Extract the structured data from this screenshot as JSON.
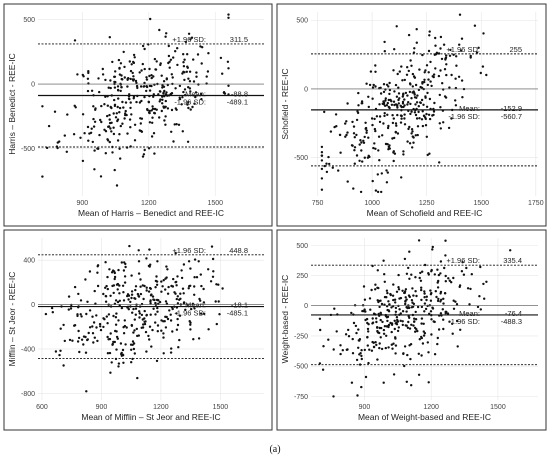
{
  "caption": "(a)",
  "chart_data": [
    {
      "type": "scatter",
      "xlabel": "Mean of Harris – Benedict and REE-IC",
      "ylabel": "Harris – Benedict - REE-IC",
      "xlim": [
        700,
        1720
      ],
      "ylim": [
        -870,
        560
      ],
      "xticks": [
        900,
        1200,
        1500
      ],
      "yticks": [
        -500,
        0,
        500
      ],
      "lines": [
        {
          "label": "+1.96 SD:",
          "value": 311.5
        },
        {
          "label": "Mean:",
          "value": -88.8
        },
        {
          "label": "-1.96 SD:",
          "value": -489.1
        }
      ],
      "ann_values": [
        "311.5",
        "-88.8",
        "-489.1"
      ],
      "x_center": 1170,
      "x_spread": 170,
      "x_min": 720,
      "x_max": 1560,
      "slope": 0.6,
      "resid_sd": 210,
      "seed": 11
    },
    {
      "type": "scatter",
      "xlabel": "Mean of Schofield and REE-IC",
      "ylabel": "Schofield - REE-IC",
      "xlim": [
        720,
        1760
      ],
      "ylim": [
        -780,
        560
      ],
      "xticks": [
        750,
        1000,
        1250,
        1500,
        1750
      ],
      "yticks": [
        -500,
        0,
        500
      ],
      "lines": [
        {
          "label": "+1.96 SD:",
          "value": 255
        },
        {
          "label": "Mean:",
          "value": -152.9
        },
        {
          "label": "-1.96 SD:",
          "value": -560.7
        }
      ],
      "ann_values": [
        "255",
        "-152.9",
        "-560.7"
      ],
      "x_center": 1120,
      "x_spread": 160,
      "x_min": 770,
      "x_max": 1560,
      "slope": 0.9,
      "resid_sd": 200,
      "seed": 23
    },
    {
      "type": "scatter",
      "xlabel": "Mean of Mifflin – St Jeor and REE-IC",
      "ylabel": "Mifflin – St Jeor - REE-IC",
      "xlim": [
        580,
        1720
      ],
      "ylim": [
        -860,
        600
      ],
      "xticks": [
        600,
        900,
        1200,
        1500
      ],
      "yticks": [
        -800,
        -400,
        0,
        400
      ],
      "lines": [
        {
          "label": "+1.96 SD:",
          "value": 448.8
        },
        {
          "label": "Mean:",
          "value": -18.1
        },
        {
          "label": "-1.96 SD:",
          "value": -485.1
        }
      ],
      "ann_values": [
        "448.8",
        "-18.1",
        "-485.1"
      ],
      "x_center": 1080,
      "x_spread": 180,
      "x_min": 620,
      "x_max": 1560,
      "slope": 0.35,
      "resid_sd": 230,
      "seed": 37
    },
    {
      "type": "scatter",
      "xlabel": "Mean of Weight-based and REE-IC",
      "ylabel": "Weight-based - REE-IC",
      "xlim": [
        660,
        1680
      ],
      "ylim": [
        -780,
        560
      ],
      "xticks": [
        900,
        1200,
        1500
      ],
      "yticks": [
        -750,
        -500,
        -250,
        0,
        250,
        500
      ],
      "lines": [
        {
          "label": "+1.96 SD:",
          "value": 335.4
        },
        {
          "label": "Mean:",
          "value": -76.4
        },
        {
          "label": "-1.96 SD:",
          "value": -488.3
        }
      ],
      "ann_values": [
        "335.4",
        "-76.4",
        "-488.3"
      ],
      "x_center": 1090,
      "x_spread": 170,
      "x_min": 700,
      "x_max": 1600,
      "slope": 0.75,
      "resid_sd": 210,
      "seed": 53
    }
  ]
}
